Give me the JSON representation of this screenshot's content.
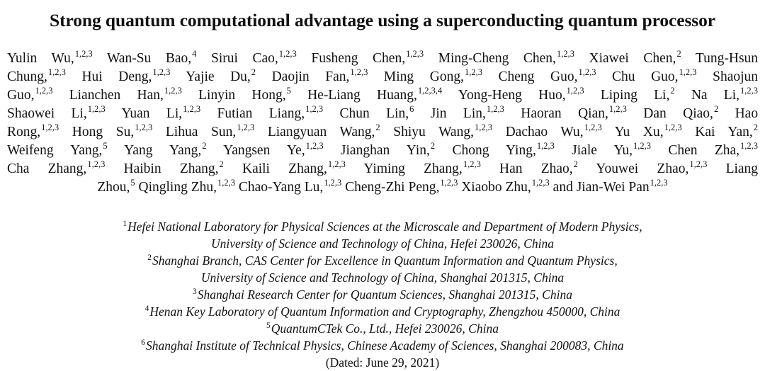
{
  "paper": {
    "title": "Strong quantum computational advantage using a superconducting quantum processor",
    "author_lines": [
      [
        {
          "name": "Yulin Wu,",
          "aff": "1,2,3"
        },
        {
          "name": "Wan-Su Bao,",
          "aff": "4"
        },
        {
          "name": "Sirui Cao,",
          "aff": "1,2,3"
        },
        {
          "name": "Fusheng Chen,",
          "aff": "1,2,3"
        },
        {
          "name": "Ming-Cheng Chen,",
          "aff": "1,2,3"
        },
        {
          "name": "Xiawei Chen,",
          "aff": "2"
        },
        {
          "name": "Tung-Hsun",
          "aff": ""
        }
      ],
      [
        {
          "name": "Chung,",
          "aff": "1,2,3"
        },
        {
          "name": "Hui Deng,",
          "aff": "1,2,3"
        },
        {
          "name": "Yajie Du,",
          "aff": "2"
        },
        {
          "name": "Daojin Fan,",
          "aff": "1,2,3"
        },
        {
          "name": "Ming Gong,",
          "aff": "1,2,3"
        },
        {
          "name": "Cheng Guo,",
          "aff": "1,2,3"
        },
        {
          "name": "Chu Guo,",
          "aff": "1,2,3"
        },
        {
          "name": "Shaojun",
          "aff": ""
        }
      ],
      [
        {
          "name": "Guo,",
          "aff": "1,2,3"
        },
        {
          "name": "Lianchen Han,",
          "aff": "1,2,3"
        },
        {
          "name": "Linyin Hong,",
          "aff": "5"
        },
        {
          "name": "He-Liang Huang,",
          "aff": "1,2,3,4"
        },
        {
          "name": "Yong-Heng Huo,",
          "aff": "1,2,3"
        },
        {
          "name": "Liping Li,",
          "aff": "2"
        },
        {
          "name": "Na Li,",
          "aff": "1,2,3"
        }
      ],
      [
        {
          "name": "Shaowei Li,",
          "aff": "1,2,3"
        },
        {
          "name": "Yuan Li,",
          "aff": "1,2,3"
        },
        {
          "name": "Futian Liang,",
          "aff": "1,2,3"
        },
        {
          "name": "Chun Lin,",
          "aff": "6"
        },
        {
          "name": "Jin Lin,",
          "aff": "1,2,3"
        },
        {
          "name": "Haoran Qian,",
          "aff": "1,2,3"
        },
        {
          "name": "Dan Qiao,",
          "aff": "2"
        },
        {
          "name": "Hao",
          "aff": ""
        }
      ],
      [
        {
          "name": "Rong,",
          "aff": "1,2,3"
        },
        {
          "name": "Hong Su,",
          "aff": "1,2,3"
        },
        {
          "name": "Lihua Sun,",
          "aff": "1,2,3"
        },
        {
          "name": "Liangyuan Wang,",
          "aff": "2"
        },
        {
          "name": "Shiyu Wang,",
          "aff": "1,2,3"
        },
        {
          "name": "Dachao Wu,",
          "aff": "1,2,3"
        },
        {
          "name": "Yu Xu,",
          "aff": "1,2,3"
        },
        {
          "name": "Kai Yan,",
          "aff": "2"
        }
      ],
      [
        {
          "name": "Weifeng Yang,",
          "aff": "5"
        },
        {
          "name": "Yang Yang,",
          "aff": "2"
        },
        {
          "name": "Yangsen Ye,",
          "aff": "1,2,3"
        },
        {
          "name": "Jianghan Yin,",
          "aff": "2"
        },
        {
          "name": "Chong Ying,",
          "aff": "1,2,3"
        },
        {
          "name": "Jiale Yu,",
          "aff": "1,2,3"
        },
        {
          "name": "Chen Zha,",
          "aff": "1,2,3"
        }
      ],
      [
        {
          "name": "Cha Zhang,",
          "aff": "1,2,3"
        },
        {
          "name": "Haibin Zhang,",
          "aff": "2"
        },
        {
          "name": "Kaili Zhang,",
          "aff": "1,2,3"
        },
        {
          "name": "Yiming Zhang,",
          "aff": "1,2,3"
        },
        {
          "name": "Han Zhao,",
          "aff": "2"
        },
        {
          "name": "Youwei Zhao,",
          "aff": "1,2,3"
        },
        {
          "name": "Liang",
          "aff": ""
        }
      ],
      [
        {
          "name": "Zhou,",
          "aff": "5"
        },
        {
          "name": "Qingling Zhu,",
          "aff": "1,2,3"
        },
        {
          "name": "Chao-Yang Lu,",
          "aff": "1,2,3"
        },
        {
          "name": "Cheng-Zhi Peng,",
          "aff": "1,2,3"
        },
        {
          "name": "Xiaobo Zhu,",
          "aff": "1,2,3"
        },
        {
          "name": "and Jian-Wei Pan",
          "aff": "1,2,3"
        }
      ]
    ],
    "affiliation_lines": [
      {
        "num": "1",
        "text": "Hefei National Laboratory for Physical Sciences at the Microscale and Department of Modern Physics,"
      },
      {
        "num": "",
        "text": "University of Science and Technology of China, Hefei 230026, China"
      },
      {
        "num": "2",
        "text": "Shanghai Branch, CAS Center for Excellence in Quantum Information and Quantum Physics,"
      },
      {
        "num": "",
        "text": "University of Science and Technology of China, Shanghai 201315, China"
      },
      {
        "num": "3",
        "text": "Shanghai Research Center for Quantum Sciences, Shanghai 201315, China"
      },
      {
        "num": "4",
        "text": "Henan Key Laboratory of Quantum Information and Cryptography, Zhengzhou 450000, China"
      },
      {
        "num": "5",
        "text": "QuantumCTek Co., Ltd., Hefei 230026, China"
      },
      {
        "num": "6",
        "text": "Shanghai Institute of Technical Physics, Chinese Academy of Sciences, Shanghai 200083, China"
      }
    ],
    "dated": "(Dated: June 29, 2021)"
  }
}
